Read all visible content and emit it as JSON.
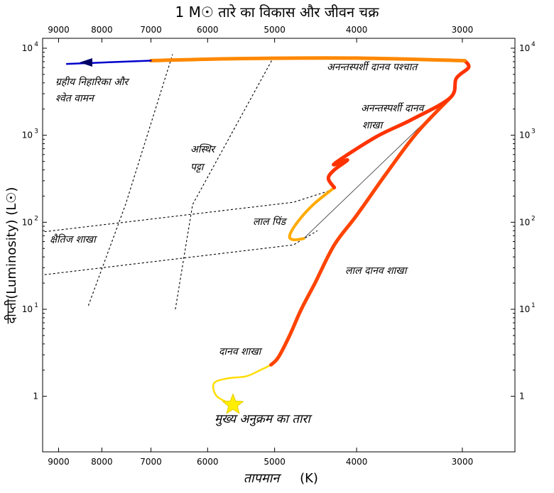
{
  "title": "1 M☉ तारे का विकास और जीवन चक्र",
  "axes": {
    "xlabel": "तापमान",
    "xunit": "(K)",
    "ylabel": "दीप्ती(Luminosity) (L☉)",
    "x_ticks": [
      "9000",
      "8000",
      "7000",
      "6000",
      "5000",
      "4000",
      "3000"
    ],
    "y_tick_mantissas": [
      "10",
      "10",
      "10",
      "10",
      "1"
    ],
    "y_tick_exponents": [
      "4",
      "3",
      "2",
      "1",
      ""
    ],
    "x_scale": "log (reversed)",
    "y_scale": "log"
  },
  "labels": {
    "planetary_nebula": [
      "ग्रहीय निहारिका और",
      "श्वेत वामन"
    ],
    "agb_after": "अनन्तस्पर्शी दानव पश्चात",
    "agb": [
      "अनन्तस्पर्शी दानव",
      "शाखा"
    ],
    "instability": [
      "अस्थिर",
      "पट्टा"
    ],
    "red_clump": "लाल पिंड",
    "horizontal_branch": "क्षैतिज शाखा",
    "red_giant_branch": "लाल दानव शाखा",
    "subgiant_branch": "दानव शाखा",
    "main_sequence": "मुख्य अनुक्रम का तारा"
  },
  "chart_data": {
    "type": "line",
    "x_axis": "Temperature (K)",
    "y_axis": "Luminosity (L☉)",
    "xlim": [
      9400,
      2600
    ],
    "ylim": [
      0.23,
      13000
    ],
    "series": [
      {
        "segment": "main sequence to subgiant",
        "color": "#ffdd00",
        "points": [
          [
            5600,
            0.8
          ],
          [
            5850,
            1.0
          ],
          [
            5900,
            1.4
          ],
          [
            5700,
            1.6
          ],
          [
            5400,
            1.7
          ],
          [
            5200,
            2.0
          ],
          [
            5050,
            2.3
          ]
        ]
      },
      {
        "segment": "red giant branch",
        "color": "#ff4400",
        "points": [
          [
            5050,
            2.3
          ],
          [
            4950,
            2.8
          ],
          [
            4800,
            5
          ],
          [
            4650,
            10
          ],
          [
            4480,
            20
          ],
          [
            4250,
            55
          ],
          [
            4000,
            120
          ],
          [
            3700,
            350
          ],
          [
            3400,
            1050
          ],
          [
            3100,
            2700
          ]
        ]
      },
      {
        "segment": "horizontal branch / red clump",
        "color": "#ffaa00",
        "points": [
          [
            4250,
            250
          ],
          [
            4500,
            160
          ],
          [
            4700,
            100
          ],
          [
            4800,
            70
          ],
          [
            4750,
            63
          ],
          [
            4620,
            65
          ]
        ]
      },
      {
        "segment": "asymptotic giant branch",
        "color": "#ff3300",
        "points": [
          [
            4250,
            250
          ],
          [
            4320,
            320
          ],
          [
            4250,
            400
          ],
          [
            4100,
            520
          ],
          [
            4250,
            470
          ],
          [
            3800,
            950
          ],
          [
            3450,
            1500
          ],
          [
            3100,
            2700
          ],
          [
            3050,
            4500
          ],
          [
            2950,
            6000
          ],
          [
            2980,
            7200
          ]
        ]
      },
      {
        "segment": "post-AGB",
        "color": "#ff8800",
        "points": [
          [
            2980,
            7200
          ],
          [
            4000,
            7700
          ],
          [
            5500,
            7600
          ],
          [
            7000,
            7200
          ]
        ]
      },
      {
        "segment": "planetary nebula / white dwarf",
        "color": "#0000cc",
        "points": [
          [
            7000,
            7200
          ],
          [
            8800,
            6600
          ]
        ]
      }
    ],
    "markers": [
      {
        "name": "main-sequence star",
        "x": 5600,
        "y": 0.8,
        "shape": "star",
        "color": "#ffee00"
      }
    ],
    "dashed_lines": [
      {
        "name": "instability strip blue edge",
        "points": [
          [
            8300,
            11
          ],
          [
            7500,
            160
          ],
          [
            6600,
            8500
          ]
        ]
      },
      {
        "name": "instability strip red edge",
        "points": [
          [
            6550,
            10
          ],
          [
            6250,
            160
          ],
          [
            5000,
            8300
          ]
        ]
      },
      {
        "name": "horizontal branch upper",
        "points": [
          [
            9350,
            78
          ],
          [
            4750,
            170
          ],
          [
            4250,
            240
          ]
        ]
      },
      {
        "name": "horizontal branch lower",
        "points": [
          [
            9350,
            25
          ],
          [
            4750,
            55
          ],
          [
            4450,
            80
          ]
        ]
      }
    ],
    "thin_lines": [
      {
        "name": "zero-age connection",
        "points": [
          [
            4620,
            65
          ],
          [
            3100,
            2700
          ]
        ]
      }
    ]
  }
}
